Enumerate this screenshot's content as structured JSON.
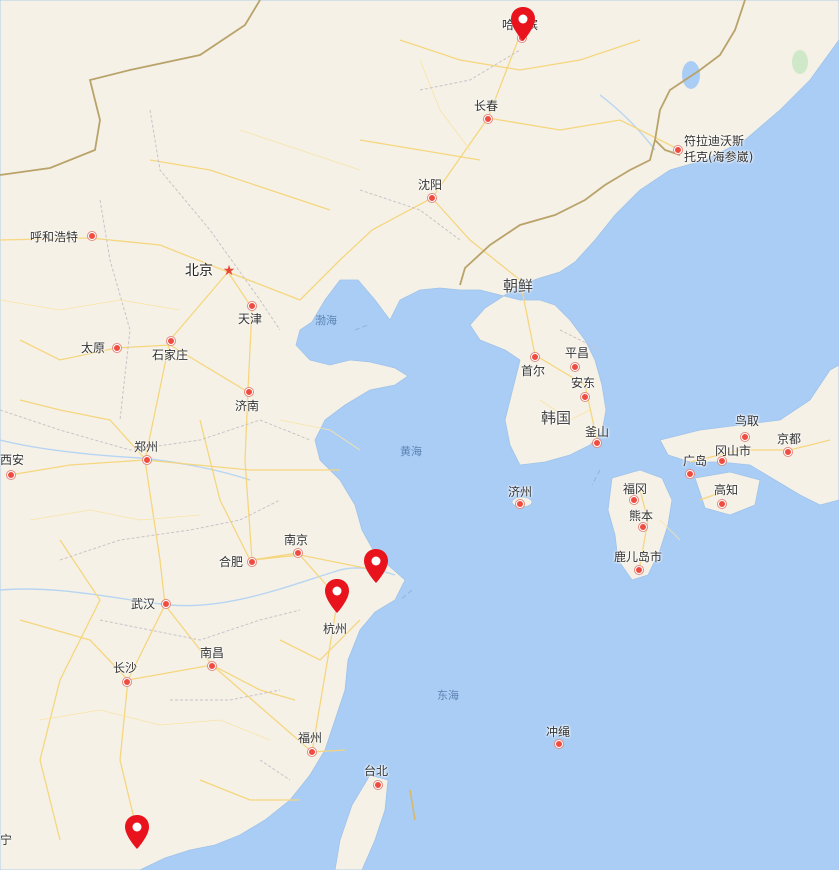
{
  "colors": {
    "water": "#aacdf5",
    "land": "#f5f1e6",
    "road": "#f6d57a",
    "border": "#b9a36a",
    "marker": "#e8131c"
  },
  "cities": [
    {
      "key": "harbin",
      "name": "哈尔滨"
    },
    {
      "key": "changchun",
      "name": "长春"
    },
    {
      "key": "shenyang",
      "name": "沈阳"
    },
    {
      "key": "hohhot",
      "name": "呼和浩特"
    },
    {
      "key": "tianjin",
      "name": "天津"
    },
    {
      "key": "taiyuan",
      "name": "太原"
    },
    {
      "key": "shijiazhuang",
      "name": "石家庄"
    },
    {
      "key": "jinan",
      "name": "济南"
    },
    {
      "key": "zhengzhou",
      "name": "郑州"
    },
    {
      "key": "xian",
      "name": "西安"
    },
    {
      "key": "hefei",
      "name": "合肥"
    },
    {
      "key": "nanjing",
      "name": "南京"
    },
    {
      "key": "wuhan",
      "name": "武汉"
    },
    {
      "key": "hangzhou",
      "name": "杭州"
    },
    {
      "key": "changsha",
      "name": "长沙"
    },
    {
      "key": "nanchang",
      "name": "南昌"
    },
    {
      "key": "fuzhou",
      "name": "福州"
    },
    {
      "key": "taipei",
      "name": "台北"
    },
    {
      "key": "pyongyang",
      "name": "平昌"
    },
    {
      "key": "seoul",
      "name": "首尔"
    },
    {
      "key": "andong",
      "name": "安东"
    },
    {
      "key": "busan",
      "name": "釜山"
    },
    {
      "key": "jeju",
      "name": "济州"
    },
    {
      "key": "fukuoka",
      "name": "福冈"
    },
    {
      "key": "kumamoto",
      "name": "熊本"
    },
    {
      "key": "kagoshima",
      "name": "鹿儿岛市"
    },
    {
      "key": "hiroshima",
      "name": "广岛"
    },
    {
      "key": "okayama",
      "name": "冈山市"
    },
    {
      "key": "kochi",
      "name": "高知"
    },
    {
      "key": "tottori",
      "name": "鸟取"
    },
    {
      "key": "kyoto",
      "name": "京都"
    },
    {
      "key": "okinawa",
      "name": "冲绳"
    }
  ],
  "capital": {
    "name": "北京"
  },
  "vladivostok": {
    "line1": "符拉迪沃斯",
    "line2": "托克(海参崴)"
  },
  "countries": {
    "north_korea": "朝鲜",
    "south_korea": "韩国"
  },
  "seas": {
    "bohai": "渤海",
    "yellow": "黄海",
    "east": "东海"
  },
  "edge_labels": {
    "left_bottom": "宁"
  },
  "markers": [
    {
      "key": "harbin",
      "name": "location-marker-harbin"
    },
    {
      "key": "shanghai",
      "name": "location-marker-shanghai"
    },
    {
      "key": "hangzhou",
      "name": "location-marker-hangzhou"
    },
    {
      "key": "guangzhou",
      "name": "location-marker-guangzhou"
    }
  ]
}
